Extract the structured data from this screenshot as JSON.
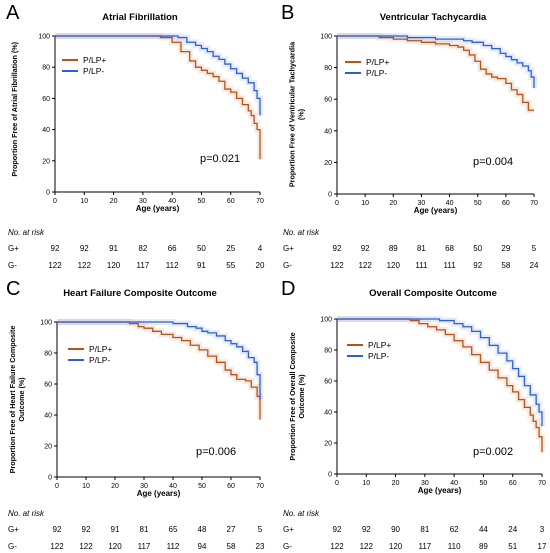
{
  "series_colors": {
    "P/LP+": "#b5541a",
    "P/LP-": "#2e5fd0"
  },
  "chart_data": [
    {
      "type": "line",
      "panel_label": "A",
      "title": "Atrial Fibrillation",
      "xlabel": "Age (years)",
      "ylabel": "Proportion Free of Atrial Fibrillation (%)",
      "xlim": [
        0,
        70
      ],
      "ylim": [
        0,
        100
      ],
      "xticks": [
        0,
        10,
        20,
        30,
        40,
        50,
        60,
        70
      ],
      "yticks": [
        0,
        20,
        40,
        60,
        80,
        100
      ],
      "legend_position": "top-left",
      "annotation": "p=0.021",
      "series": [
        {
          "name": "P/LP+",
          "color": "#b5541a",
          "x": [
            0,
            30,
            36,
            40,
            43,
            46,
            48,
            50,
            52,
            54,
            56,
            58,
            60,
            62,
            64,
            66,
            67,
            68,
            69,
            70
          ],
          "y": [
            100,
            100,
            99,
            96,
            90,
            84,
            80,
            78,
            76,
            74,
            71,
            66,
            64,
            60,
            56,
            52,
            49,
            44,
            40,
            21
          ]
        },
        {
          "name": "P/LP-",
          "color": "#2e5fd0",
          "x": [
            0,
            38,
            42,
            45,
            48,
            50,
            52,
            54,
            56,
            58,
            60,
            62,
            64,
            66,
            68,
            69,
            70
          ],
          "y": [
            100,
            100,
            99,
            96,
            94,
            92,
            90,
            87,
            85,
            82,
            79,
            76,
            73,
            70,
            65,
            60,
            49
          ]
        }
      ],
      "risk_table": {
        "title": "No. at risk",
        "ages": [
          0,
          10,
          20,
          30,
          40,
          50,
          60,
          70
        ],
        "rows": [
          {
            "label": "G+",
            "values": [
              "92",
              "92",
              "91",
              "82",
              "66",
              "50",
              "25",
              "4"
            ]
          },
          {
            "label": "G-",
            "values": [
              "122",
              "122",
              "120",
              "117",
              "112",
              "91",
              "55",
              "20"
            ]
          }
        ]
      }
    },
    {
      "type": "line",
      "panel_label": "B",
      "title": "Ventricular Tachycardia",
      "xlabel": "Age (years)",
      "ylabel": "Proportion Free of Ventricular Tachycardia (%)",
      "xlim": [
        0,
        70
      ],
      "ylim": [
        0,
        100
      ],
      "xticks": [
        0,
        10,
        20,
        30,
        40,
        50,
        60,
        70
      ],
      "yticks": [
        0,
        20,
        40,
        60,
        80,
        100
      ],
      "legend_position": "top-left",
      "annotation": "p=0.004",
      "series": [
        {
          "name": "P/LP+",
          "color": "#b5541a",
          "x": [
            0,
            10,
            15,
            20,
            25,
            30,
            35,
            40,
            43,
            45,
            47,
            49,
            51,
            53,
            55,
            57,
            60,
            62,
            64,
            66,
            68,
            70
          ],
          "y": [
            100,
            100,
            99,
            98,
            97,
            96,
            95,
            94,
            93,
            91,
            88,
            84,
            79,
            76,
            74,
            73,
            70,
            66,
            63,
            58,
            53,
            53
          ]
        },
        {
          "name": "P/LP-",
          "color": "#2e5fd0",
          "x": [
            0,
            20,
            25,
            30,
            35,
            40,
            45,
            48,
            52,
            55,
            58,
            60,
            62,
            64,
            66,
            68,
            69,
            70
          ],
          "y": [
            100,
            100,
            99,
            99,
            98,
            98,
            97,
            96,
            94,
            92,
            89,
            87,
            85,
            83,
            81,
            78,
            74,
            67
          ]
        }
      ],
      "risk_table": {
        "title": "No. at risk",
        "ages": [
          0,
          10,
          20,
          30,
          40,
          50,
          60,
          70
        ],
        "rows": [
          {
            "label": "G+",
            "values": [
              "92",
              "92",
              "89",
              "81",
              "68",
              "50",
              "29",
              "5"
            ]
          },
          {
            "label": "G-",
            "values": [
              "122",
              "122",
              "120",
              "111",
              "111",
              "92",
              "58",
              "24"
            ]
          }
        ]
      }
    },
    {
      "type": "line",
      "panel_label": "C",
      "title": "Heart Failure Composite Outcome",
      "xlabel": "Age (years)",
      "ylabel": "Proportion Free of Heart Failure Composite Outcome (%)",
      "xlim": [
        0,
        70
      ],
      "ylim": [
        0,
        100
      ],
      "xticks": [
        0,
        10,
        20,
        30,
        40,
        50,
        60,
        70
      ],
      "yticks": [
        0,
        20,
        40,
        60,
        80,
        100
      ],
      "legend_position": "top-left",
      "annotation": "p=0.006",
      "series": [
        {
          "name": "P/LP+",
          "color": "#b5541a",
          "x": [
            0,
            22,
            25,
            28,
            30,
            33,
            36,
            40,
            43,
            46,
            49,
            52,
            55,
            58,
            60,
            62,
            65,
            67,
            69,
            70
          ],
          "y": [
            100,
            100,
            99,
            97,
            96,
            94,
            92,
            90,
            88,
            85,
            82,
            78,
            74,
            69,
            66,
            63,
            62,
            58,
            52,
            37
          ]
        },
        {
          "name": "P/LP-",
          "color": "#2e5fd0",
          "x": [
            0,
            35,
            40,
            45,
            48,
            50,
            52,
            55,
            58,
            60,
            62,
            64,
            66,
            68,
            69,
            70
          ],
          "y": [
            100,
            100,
            99,
            97,
            96,
            94,
            93,
            91,
            88,
            86,
            84,
            81,
            77,
            74,
            66,
            50
          ]
        }
      ],
      "risk_table": {
        "title": "No. at risk",
        "ages": [
          0,
          10,
          20,
          30,
          40,
          50,
          60,
          70
        ],
        "rows": [
          {
            "label": "G+",
            "values": [
              "92",
              "92",
              "91",
              "81",
              "65",
              "48",
              "27",
              "5"
            ]
          },
          {
            "label": "G-",
            "values": [
              "122",
              "122",
              "120",
              "117",
              "112",
              "94",
              "58",
              "23"
            ]
          }
        ]
      }
    },
    {
      "type": "line",
      "panel_label": "D",
      "title": "Overall Composite Outcome",
      "xlabel": "Age (years)",
      "ylabel": "Proportion Free of Overall Composite Outcome (%)",
      "xlim": [
        0,
        70
      ],
      "ylim": [
        0,
        100
      ],
      "xticks": [
        0,
        10,
        20,
        30,
        40,
        50,
        60,
        70
      ],
      "yticks": [
        0,
        20,
        40,
        60,
        80,
        100
      ],
      "legend_position": "top-left",
      "annotation": "p=0.002",
      "series": [
        {
          "name": "P/LP+",
          "color": "#b5541a",
          "x": [
            0,
            20,
            25,
            28,
            31,
            34,
            37,
            40,
            43,
            46,
            49,
            52,
            55,
            58,
            60,
            62,
            64,
            66,
            67,
            68,
            69,
            70
          ],
          "y": [
            100,
            100,
            99,
            97,
            95,
            93,
            90,
            86,
            82,
            77,
            72,
            67,
            62,
            57,
            53,
            48,
            43,
            38,
            34,
            30,
            24,
            14
          ]
        },
        {
          "name": "P/LP-",
          "color": "#2e5fd0",
          "x": [
            0,
            30,
            35,
            40,
            43,
            46,
            49,
            52,
            55,
            58,
            60,
            62,
            64,
            66,
            68,
            69,
            70
          ],
          "y": [
            100,
            100,
            99,
            97,
            95,
            92,
            88,
            83,
            78,
            73,
            68,
            63,
            57,
            51,
            45,
            40,
            31
          ]
        }
      ],
      "risk_table": {
        "title": "No. at risk",
        "ages": [
          0,
          10,
          20,
          30,
          40,
          50,
          60,
          70
        ],
        "rows": [
          {
            "label": "G+",
            "values": [
              "92",
              "92",
              "90",
              "81",
              "62",
              "44",
              "24",
              "3"
            ]
          },
          {
            "label": "G-",
            "values": [
              "122",
              "122",
              "120",
              "117",
              "110",
              "89",
              "51",
              "17"
            ]
          }
        ]
      }
    }
  ]
}
